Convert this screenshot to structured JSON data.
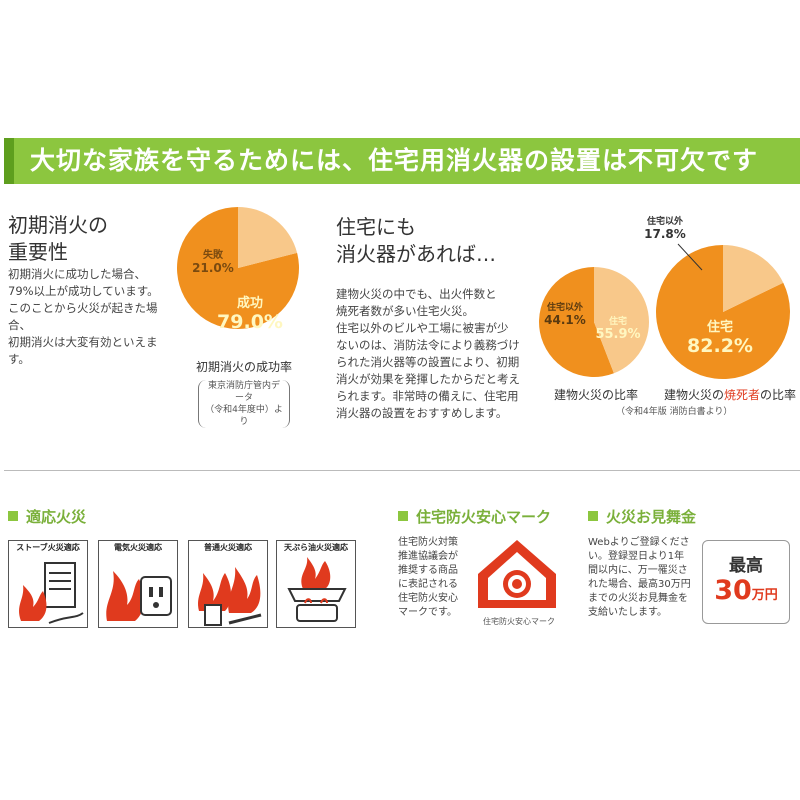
{
  "banner": {
    "title": "大切な家族を守るためには、住宅用消火器の設置は不可欠です"
  },
  "initial": {
    "title_line1": "初期消火の",
    "title_line2": "重要性",
    "body_line1": "初期消火に成功した場合、",
    "body_line2": "79%以上が成功しています。",
    "body_line3": "このことから火災が起きた場合、",
    "body_line4": "初期消火は大変有効といえます。",
    "chart_caption": "初期消火の成功率",
    "source_line1": "東京消防庁管内データ",
    "source_line2": "（令和4年度中）より"
  },
  "residential": {
    "title_line1": "住宅にも",
    "title_line2": "消火器があれば…",
    "body_lines": [
      "建物火災の中でも、出火件数と",
      "焼死者数が多い住宅火災。",
      "住宅以外のビルや工場に被害が少",
      "ないのは、消防法令により義務づけ",
      "られた消火器等の設置により、初期",
      "消火が効果を発揮したからだと考え",
      "られます。非常時の備えに、住宅用",
      "消火器の設置をおすすめします。"
    ]
  },
  "chart_data": [
    {
      "type": "pie",
      "title": "初期消火の成功率",
      "categories": [
        "成功",
        "失敗"
      ],
      "values": [
        79.0,
        21.0
      ],
      "labels": [
        "79.0%",
        "21.0%"
      ],
      "colors": [
        "#f0901e",
        "#f8c88a"
      ]
    },
    {
      "type": "pie",
      "title": "建物火災の比率",
      "categories": [
        "住宅",
        "住宅以外"
      ],
      "values": [
        55.9,
        44.1
      ],
      "labels": [
        "55.9%",
        "44.1%"
      ],
      "colors": [
        "#f0901e",
        "#f8c88a"
      ]
    },
    {
      "type": "pie",
      "title": "建物火災の焼死者の比率",
      "categories": [
        "住宅",
        "住宅以外"
      ],
      "values": [
        82.2,
        17.8
      ],
      "labels": [
        "82.2%",
        "17.8%"
      ],
      "colors": [
        "#f0901e",
        "#f8c88a"
      ]
    }
  ],
  "charts": {
    "c2_caption": "建物火災の比率",
    "c3_caption_pre": "建物火災の",
    "c3_caption_hl": "焼死者",
    "c3_caption_post": "の比率",
    "source": "（令和4年版 消防白書より）",
    "highlight_color": "#e03a1e"
  },
  "suitable": {
    "heading": "適応火災",
    "items": [
      "ストーブ火災適応",
      "電気火災適応",
      "普通火災適応",
      "天ぷら油火災適応"
    ]
  },
  "mark": {
    "heading": "住宅防火安心マーク",
    "body_lines": [
      "住宅防火対策",
      "推進協議会が",
      "推奨する商品",
      "に表記される",
      "住宅防火安心",
      "マークです。"
    ],
    "logo_caption": "住宅防火安心マーク"
  },
  "prize": {
    "heading": "火災お見舞金",
    "body_lines": [
      "Webよりご登録くださ",
      "い。登録翌日より1年",
      "間以内に、万一罹災さ",
      "れた場合、最高30万円",
      "までの火災お見舞金を",
      "支給いたします。"
    ],
    "box_top": "最高",
    "box_amount": "30",
    "box_unit": "万円"
  }
}
